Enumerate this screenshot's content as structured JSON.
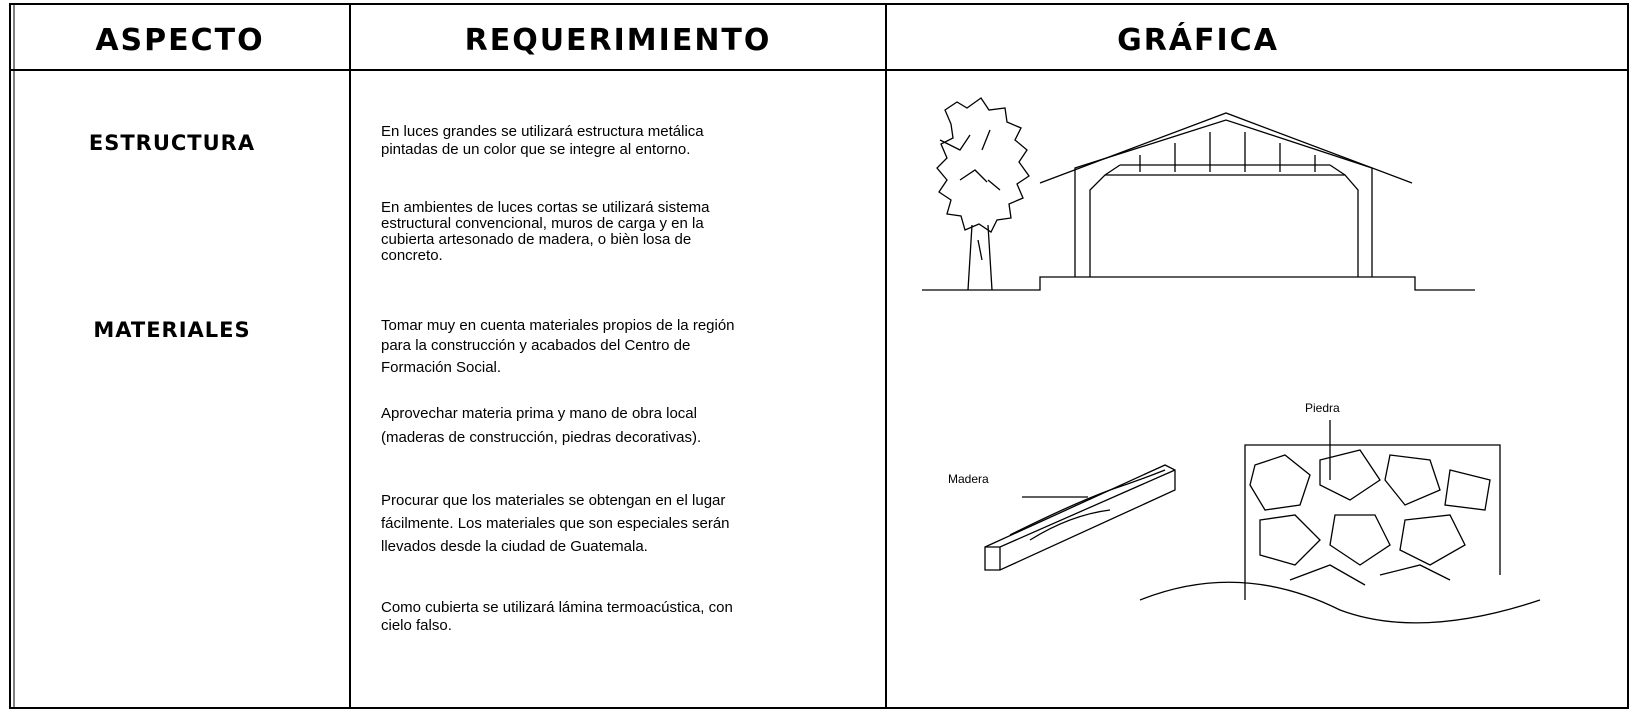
{
  "table": {
    "headers": [
      "ASPECTO",
      "REQUERIMIENTO",
      "GRÁFICA"
    ],
    "aspects": [
      "ESTRUCTURA",
      "MATERIALES"
    ],
    "requirements": [
      [
        "En luces grandes se utilizará estructura metálica",
        "pintadas de un color que se integre al entorno."
      ],
      [
        "En ambientes de luces cortas se utilizará sistema",
        "estructural convencional, muros de carga y en la",
        "cubierta artesonado de madera, o bièn losa de",
        "concreto."
      ],
      [
        "Tomar muy en cuenta materiales propios de la región",
        "para la construcción y acabados del Centro de",
        "Formación Social."
      ],
      [
        "Aprovechar materia prima y mano de obra local",
        "(maderas de construcción, piedras decorativas)."
      ],
      [
        "Procurar que los materiales se obtengan en el lugar",
        "fácilmente.  Los materiales que son especiales serán",
        "llevados desde la ciudad de Guatemala."
      ],
      [
        "Como cubierta se utilizará lámina termoacústica, con",
        "cielo falso."
      ]
    ],
    "graphic_labels": [
      "Madera",
      "Piedra"
    ]
  }
}
